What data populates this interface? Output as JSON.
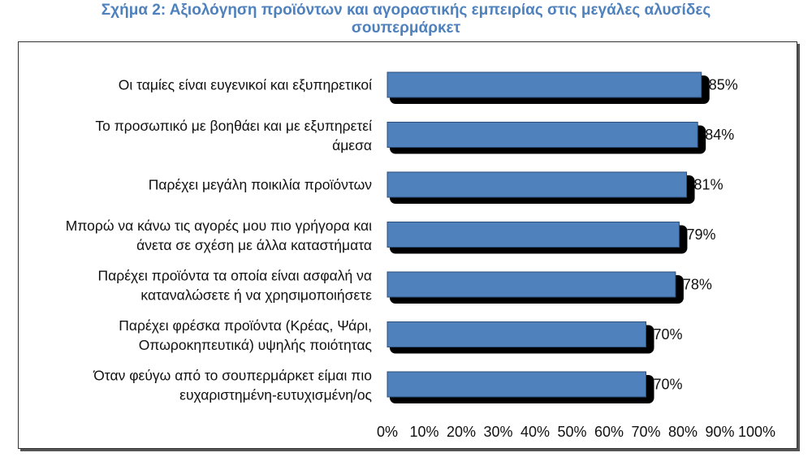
{
  "chart_data": {
    "type": "bar",
    "orientation": "horizontal",
    "title": "Σχήμα 2: Αξιολόγηση προϊόντων και αγοραστικής εμπειρίας στις μεγάλες αλυσίδες σουπερμάρκετ",
    "title_lines": [
      "Σχήμα 2: Αξιολόγηση προϊόντων και αγοραστικής εμπειρίας στις μεγάλες αλυσίδες",
      "σουπερμάρκετ"
    ],
    "categories": [
      [
        "Οι ταμίες είναι ευγενικοί και εξυπηρετικοί"
      ],
      [
        "Το προσωπικό με βοηθάει και με εξυπηρετεί",
        "άμεσα"
      ],
      [
        "Παρέχει μεγάλη ποικιλία προϊόντων"
      ],
      [
        "Μπορώ να κάνω τις αγορές μου πιο γρήγορα και",
        "άνετα σε σχέση με άλλα καταστήματα"
      ],
      [
        "Παρέχει προϊόντα τα οποία είναι ασφαλή να",
        "καταναλώσετε ή να χρησιμοποιήσετε"
      ],
      [
        "Παρέχει φρέσκα προϊόντα (Κρέας, Ψάρι,",
        "Οπωροκηπευτικά) υψηλής ποιότητας"
      ],
      [
        "Όταν φεύγω από το σουπερμάρκετ είμαι πιο",
        "ευχαριστημένη-ευτυχισμένη/ος"
      ]
    ],
    "values": [
      85,
      84,
      81,
      79,
      78,
      70,
      70
    ],
    "value_labels": [
      "85%",
      "84%",
      "81%",
      "79%",
      "78%",
      "70%",
      "70%"
    ],
    "xlim": [
      0,
      100
    ],
    "xticks": [
      "0%",
      "10%",
      "20%",
      "30%",
      "40%",
      "50%",
      "60%",
      "70%",
      "80%",
      "90%",
      "100%"
    ],
    "grid": false,
    "bar_color": "#4f81bd",
    "shadow_color": "#000000"
  }
}
